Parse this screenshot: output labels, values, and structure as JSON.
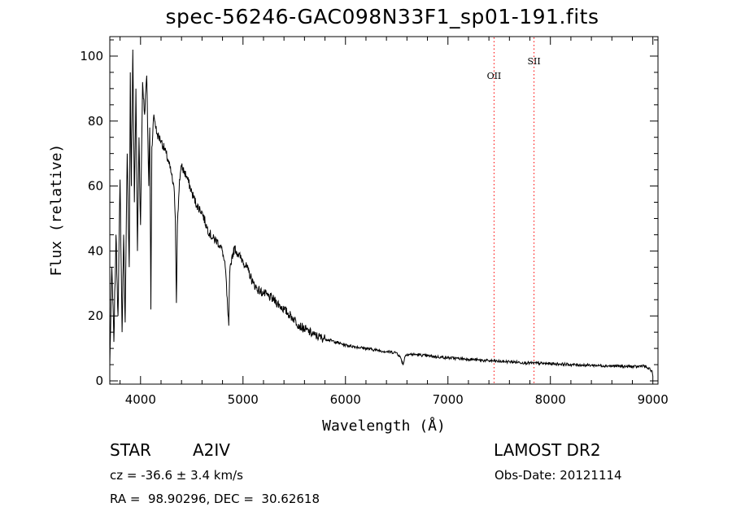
{
  "chart_data": {
    "type": "line",
    "title": "spec-56246-GAC098N33F1_sp01-191.fits",
    "xlabel": "Wavelength (Å)",
    "ylabel": "Flux (relative)",
    "xlim": [
      3700,
      9050
    ],
    "ylim": [
      -1,
      106
    ],
    "xticks": [
      4000,
      5000,
      6000,
      7000,
      8000,
      9000
    ],
    "yticks": [
      0,
      20,
      40,
      60,
      80,
      100
    ],
    "grid": false,
    "line_color": "#000000",
    "marker_color": "#ff0000",
    "markers": [
      {
        "label": "OII",
        "x": 7450
      },
      {
        "label": "SII",
        "x": 7840
      }
    ],
    "series": [
      {
        "x": [
          3700,
          3720,
          3740,
          3760,
          3780,
          3800,
          3820,
          3835,
          3850,
          3870,
          3890,
          3900,
          3910,
          3925,
          3940,
          3955,
          3970,
          3985,
          4000,
          4020,
          4040,
          4060,
          4080,
          4090,
          4101,
          4110,
          4130,
          4160,
          4200,
          4250,
          4300,
          4330,
          4340,
          4350,
          4360,
          4380,
          4400,
          4450,
          4500,
          4550,
          4600,
          4650,
          4700,
          4750,
          4800,
          4830,
          4850,
          4861,
          4870,
          4890,
          4920,
          4950,
          5000,
          5050,
          5100,
          5150,
          5200,
          5300,
          5400,
          5500,
          5550,
          5600,
          5700,
          5800,
          5900,
          6000,
          6100,
          6200,
          6300,
          6400,
          6500,
          6540,
          6563,
          6580,
          6600,
          6700,
          6800,
          6900,
          7000,
          7100,
          7200,
          7300,
          7400,
          7500,
          7600,
          7700,
          7800,
          7900,
          8000,
          8100,
          8200,
          8300,
          8400,
          8500,
          8600,
          8700,
          8800,
          8850,
          8900,
          8950,
          8990,
          9000
        ],
        "y": [
          5,
          35,
          12,
          45,
          20,
          62,
          15,
          45,
          18,
          70,
          35,
          95,
          60,
          102,
          55,
          90,
          40,
          75,
          48,
          92,
          82,
          94,
          60,
          78,
          22,
          72,
          82,
          76,
          74,
          70,
          64,
          58,
          50,
          24,
          48,
          62,
          66,
          63,
          58,
          54,
          52,
          47,
          44,
          43,
          40,
          34,
          22,
          17,
          33,
          38,
          41,
          39,
          37,
          34,
          30,
          28,
          27,
          25,
          22,
          19,
          17,
          16,
          14,
          13,
          12,
          11,
          10.5,
          10,
          9.5,
          9,
          8.7,
          7,
          5,
          7.5,
          8.2,
          8.1,
          7.7,
          7.4,
          7.1,
          6.9,
          6.7,
          6.4,
          6.2,
          6,
          5.9,
          5.7,
          5.5,
          5.4,
          5.3,
          5.2,
          5.0,
          4.9,
          4.8,
          4.7,
          4.6,
          4.5,
          4.4,
          4.3,
          4.8,
          3.9,
          3.2,
          1.5
        ]
      }
    ]
  },
  "info": {
    "obj_type": "STAR",
    "obj_class": "A2IV",
    "survey": "LAMOST DR2",
    "cz": "cz = -36.6 ± 3.4 km/s",
    "obs_date": "Obs-Date: 20121114",
    "coords": "RA =  98.90296, DEC =  30.62618"
  }
}
